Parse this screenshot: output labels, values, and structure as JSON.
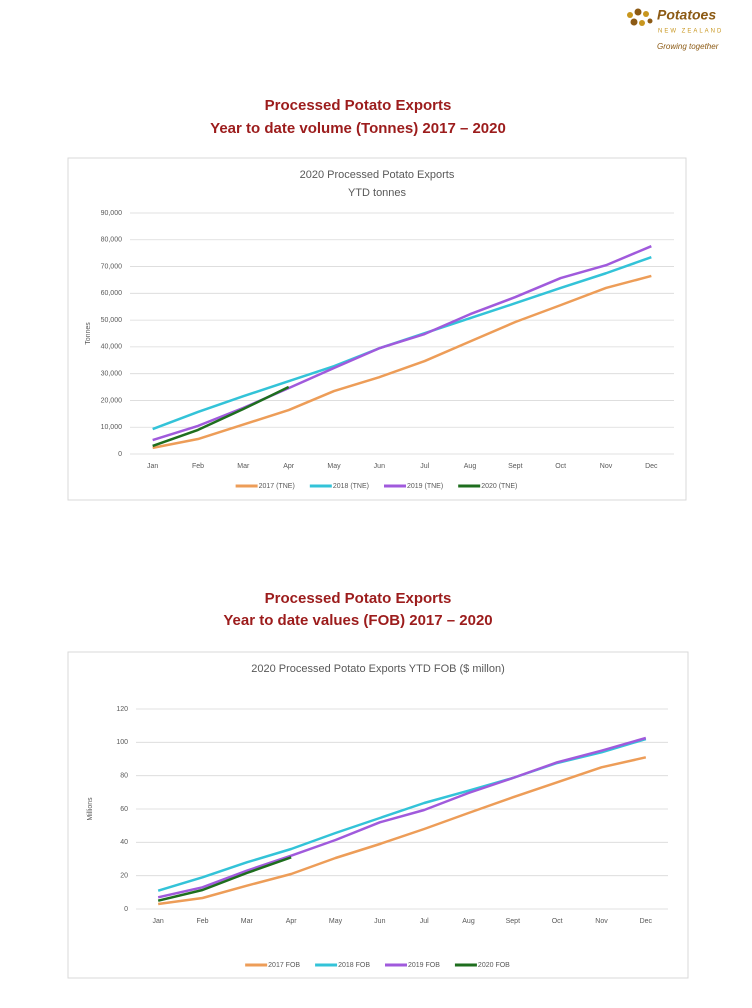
{
  "header": {
    "brand": "Potatoes",
    "region": "NEW ZEALAND",
    "tagline": "Growing together"
  },
  "sections": [
    {
      "title": "Processed Potato Exports",
      "subtitle": "Year to date volume (Tonnes) 2017 – 2020"
    },
    {
      "title": "Processed Potato Exports",
      "subtitle": "Year to date values (FOB) 2017 – 2020"
    }
  ],
  "chart_data": [
    {
      "type": "line",
      "title": "2020 Processed Potato Exports",
      "subtitle": "YTD tonnes",
      "y_label": "Tonnes",
      "categories": [
        "Jan",
        "Feb",
        "Mar",
        "Apr",
        "May",
        "Jun",
        "Jul",
        "Aug",
        "Sept",
        "Oct",
        "Nov",
        "Dec"
      ],
      "ylim": [
        0,
        90000
      ],
      "yticks": [
        0,
        {
          "value": 10000,
          "label": "10,000"
        },
        {
          "value": 20000,
          "label": "20,000"
        },
        {
          "value": 30000,
          "label": "30,000"
        },
        {
          "value": 40000,
          "label": "40,000"
        },
        {
          "value": 50000,
          "label": "50,000"
        },
        {
          "value": 60000,
          "label": "60,000"
        },
        {
          "value": 70000,
          "label": "70,000"
        },
        {
          "value": 80000,
          "label": "80,000"
        },
        {
          "value": 90000,
          "label": "90,000"
        }
      ],
      "grid": true,
      "legend": "bottom",
      "series": [
        {
          "name": "2017 (TNE)",
          "color": "#ed9d58",
          "values": [
            2300,
            5600,
            11000,
            16400,
            23500,
            28700,
            34700,
            42000,
            49300,
            55600,
            62000,
            66500
          ]
        },
        {
          "name": "2018 (TNE)",
          "color": "#33c3d8",
          "values": [
            9300,
            15700,
            21600,
            27200,
            32800,
            39500,
            45100,
            50700,
            56300,
            62000,
            67500,
            73500
          ]
        },
        {
          "name": "2019 (TNE)",
          "color": "#a05adc",
          "values": [
            5200,
            10500,
            17200,
            24600,
            32100,
            39500,
            44800,
            52200,
            58600,
            65700,
            70500,
            77600
          ]
        },
        {
          "name": "2020 (TNE)",
          "color": "#1e6e1e",
          "values": [
            3000,
            9000,
            16800,
            25000,
            null,
            null,
            null,
            null,
            null,
            null,
            null,
            null
          ]
        }
      ]
    },
    {
      "type": "line",
      "title": "2020 Processed Potato Exports YTD FOB ($ millon)",
      "y_label": "Millions",
      "categories": [
        "Jan",
        "Feb",
        "Mar",
        "Apr",
        "May",
        "Jun",
        "Jul",
        "Aug",
        "Sept",
        "Oct",
        "Nov",
        "Dec"
      ],
      "ylim": [
        0,
        120
      ],
      "yticks": [
        0,
        20,
        40,
        60,
        80,
        100,
        120
      ],
      "grid": true,
      "legend": "bottom",
      "series": [
        {
          "name": "2017 FOB",
          "color": "#ed9d58",
          "values": [
            3,
            6.6,
            14,
            21,
            30.6,
            39,
            48,
            57.6,
            67,
            76,
            85,
            91
          ]
        },
        {
          "name": "2018 FOB",
          "color": "#33c3d8",
          "values": [
            11,
            19,
            28,
            36,
            45.6,
            54.6,
            63.6,
            71,
            78.6,
            87.6,
            94,
            102
          ]
        },
        {
          "name": "2019 FOB",
          "color": "#a05adc",
          "values": [
            7,
            13,
            23,
            32,
            41.4,
            52,
            59.4,
            69.6,
            78.6,
            88,
            95,
            102.6
          ]
        },
        {
          "name": "2020 FOB",
          "color": "#1e6e1e",
          "values": [
            5,
            11.4,
            21.6,
            31,
            null,
            null,
            null,
            null,
            null,
            null,
            null,
            null
          ]
        }
      ]
    }
  ]
}
